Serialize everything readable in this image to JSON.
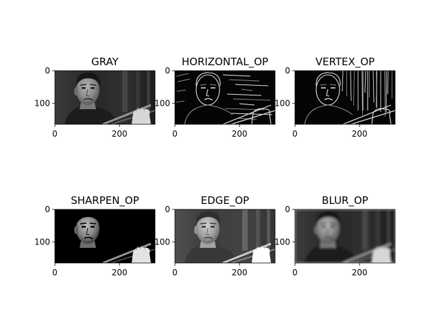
{
  "chart_data": [
    {
      "type": "image",
      "title": "GRAY",
      "kind": "gray",
      "xlim": [
        0,
        310
      ],
      "ylim": [
        0,
        165
      ],
      "xticks": [
        "0",
        "200"
      ],
      "yticks": [
        "0",
        "100"
      ]
    },
    {
      "type": "image",
      "title": "HORIZONTAL_OP",
      "kind": "hedge",
      "xlim": [
        0,
        310
      ],
      "ylim": [
        0,
        165
      ],
      "xticks": [
        "0",
        "200"
      ],
      "yticks": [
        "0",
        "100"
      ]
    },
    {
      "type": "image",
      "title": "VERTEX_OP",
      "kind": "vedge",
      "xlim": [
        0,
        310
      ],
      "ylim": [
        0,
        165
      ],
      "xticks": [
        "0",
        "200"
      ],
      "yticks": [
        "0",
        "100"
      ]
    },
    {
      "type": "image",
      "title": "SHARPEN_OP",
      "kind": "sharpen",
      "xlim": [
        0,
        310
      ],
      "ylim": [
        0,
        165
      ],
      "xticks": [
        "0",
        "200"
      ],
      "yticks": [
        "0",
        "100"
      ]
    },
    {
      "type": "image",
      "title": "EDGE_OP",
      "kind": "edge",
      "xlim": [
        0,
        310
      ],
      "ylim": [
        0,
        165
      ],
      "xticks": [
        "0",
        "200"
      ],
      "yticks": [
        "0",
        "100"
      ]
    },
    {
      "type": "image",
      "title": "BLUR_OP",
      "kind": "blur",
      "xlim": [
        0,
        310
      ],
      "ylim": [
        0,
        165
      ],
      "xticks": [
        "0",
        "200"
      ],
      "yticks": [
        "0",
        "100"
      ]
    }
  ]
}
